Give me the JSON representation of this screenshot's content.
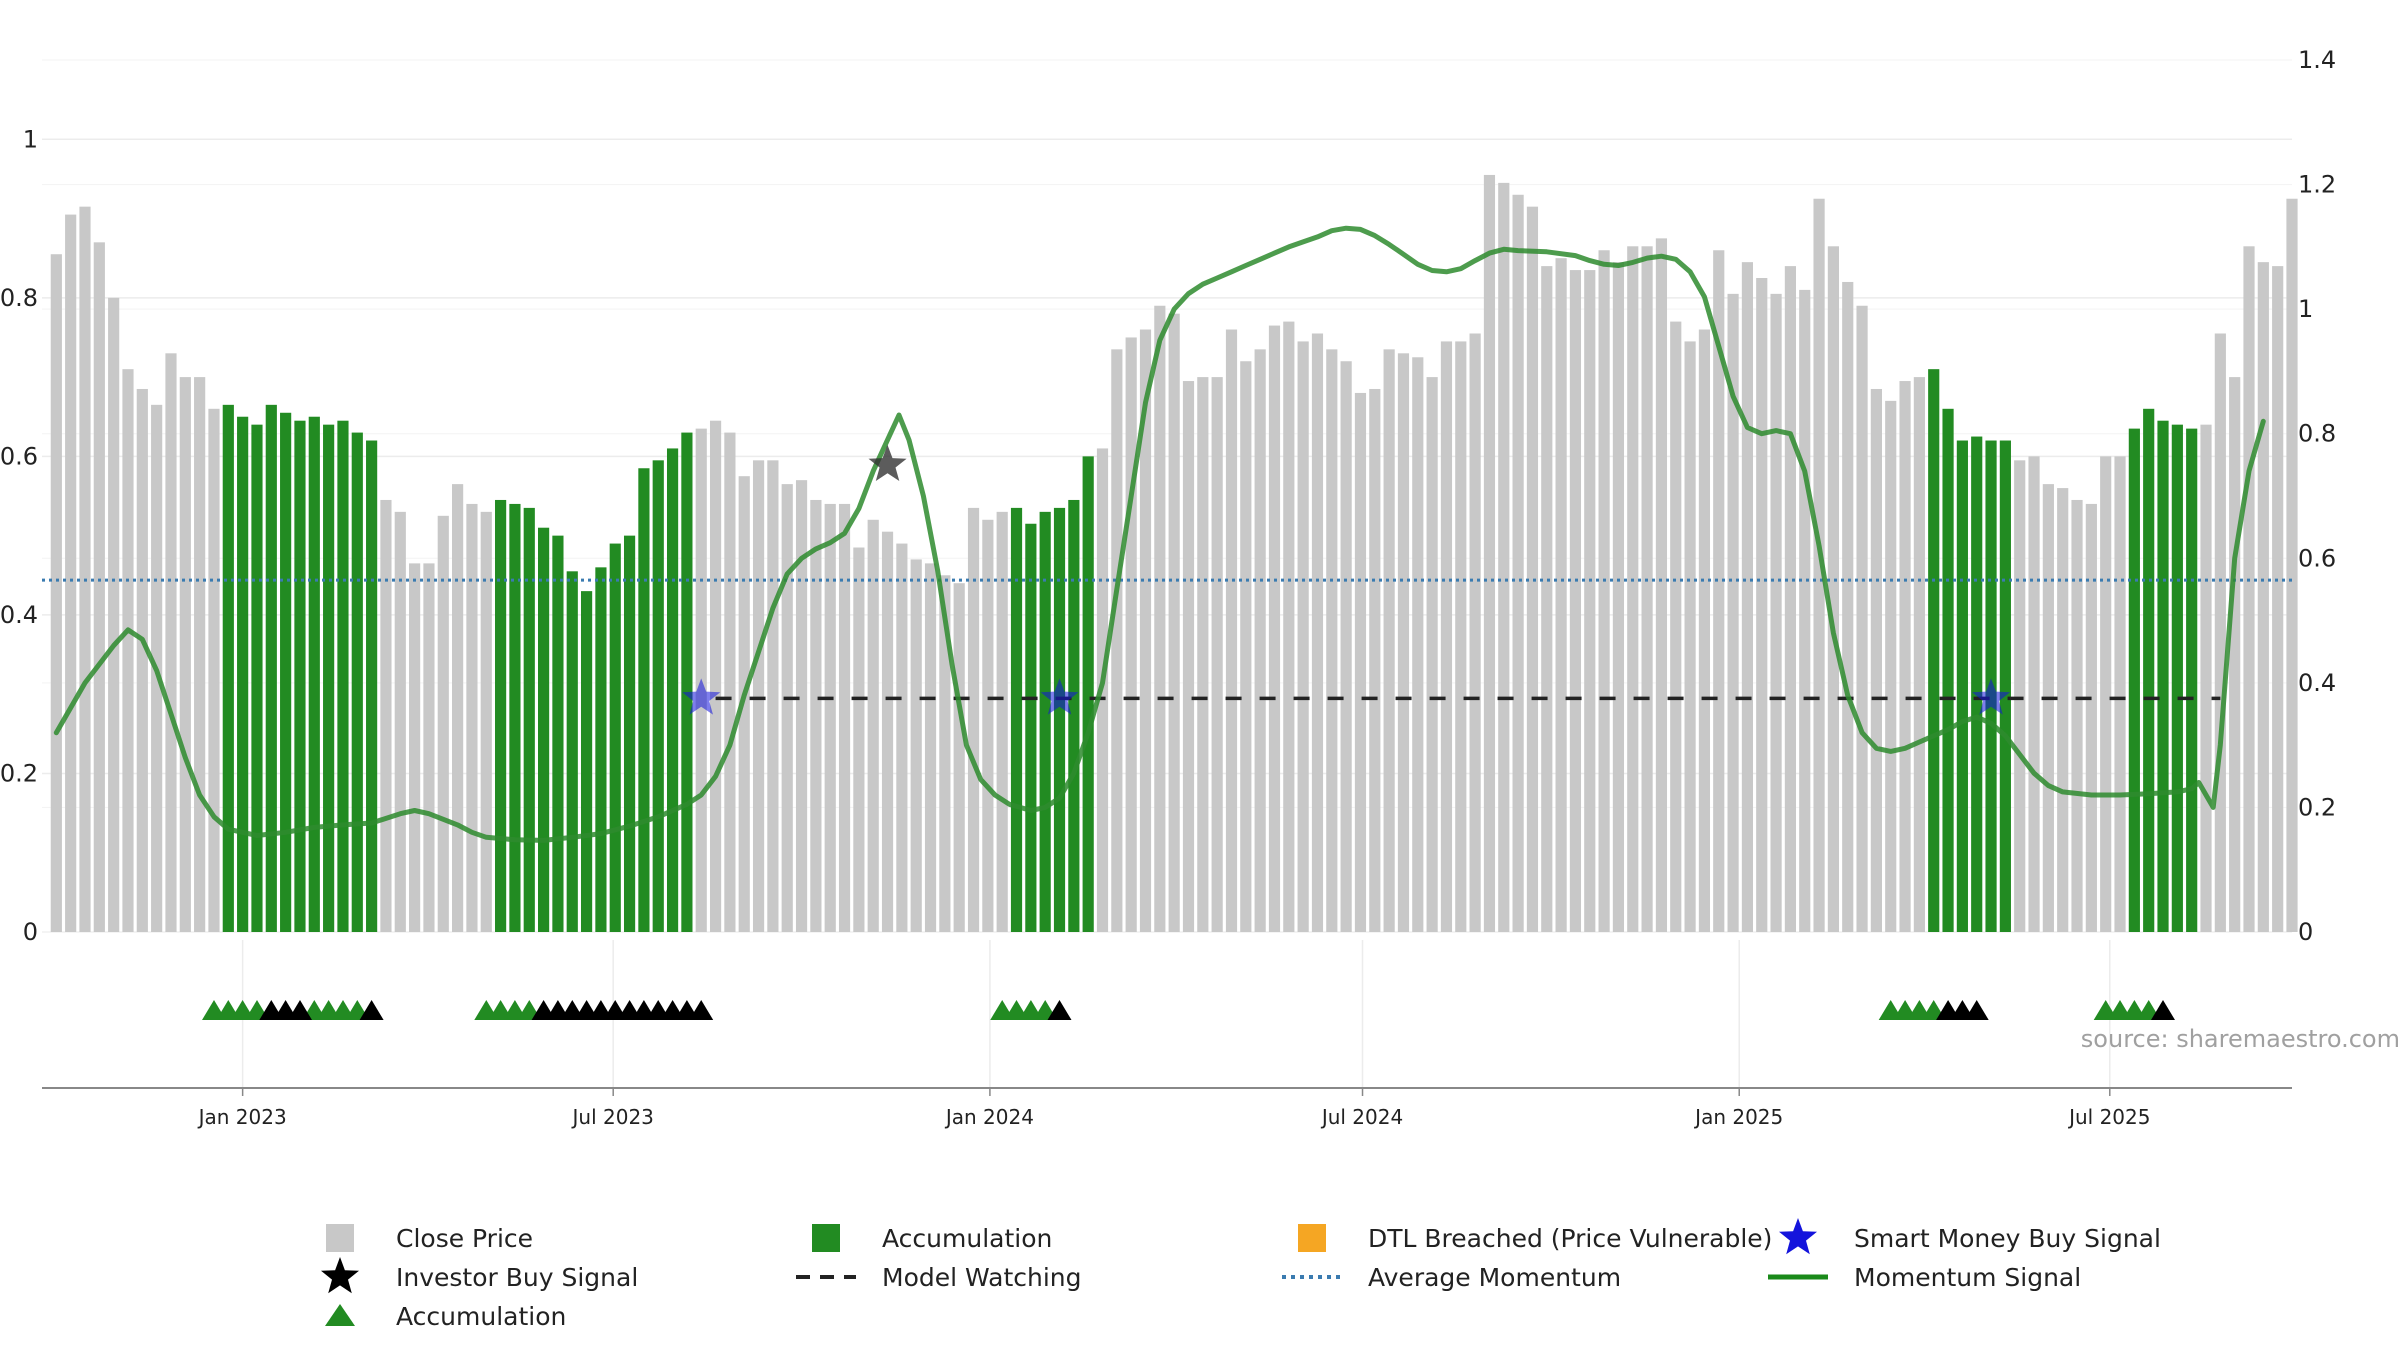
{
  "chart_data": {
    "type": "bar",
    "source_text": "source: sharemaestro.com",
    "x_ticks": [
      "Jan 2023",
      "Jul 2023",
      "Jan 2024",
      "Jul 2024",
      "Jan 2025",
      "Jul 2025"
    ],
    "x_tick_dates": [
      "2023-01-01",
      "2023-07-01",
      "2024-01-01",
      "2024-07-01",
      "2025-01-01",
      "2025-07-01"
    ],
    "x_range": [
      "2022-09-25",
      "2025-09-28"
    ],
    "bar_start_date": "2022-10-02",
    "bar_interval_days": 7,
    "y_left": {
      "range": [
        0,
        1.1
      ],
      "ticks": [
        "0",
        "0.2",
        "0.4",
        "0.6",
        "0.8",
        "1"
      ]
    },
    "y_right": {
      "range": [
        0,
        1.4
      ],
      "ticks": [
        "0",
        "0.2",
        "0.4",
        "0.6",
        "0.8",
        "1",
        "1.2",
        "1.4"
      ]
    },
    "close_price": [
      0.855,
      0.905,
      0.915,
      0.87,
      0.8,
      0.71,
      0.685,
      0.665,
      0.73,
      0.7,
      0.7,
      0.66,
      0.665,
      0.65,
      0.64,
      0.665,
      0.655,
      0.645,
      0.65,
      0.64,
      0.645,
      0.63,
      0.62,
      0.545,
      0.53,
      0.465,
      0.465,
      0.525,
      0.565,
      0.54,
      0.53,
      0.545,
      0.54,
      0.535,
      0.51,
      0.5,
      0.455,
      0.43,
      0.46,
      0.49,
      0.5,
      0.585,
      0.595,
      0.61,
      0.63,
      0.635,
      0.645,
      0.63,
      0.575,
      0.595,
      0.595,
      0.565,
      0.57,
      0.545,
      0.54,
      0.54,
      0.485,
      0.52,
      0.505,
      0.49,
      0.47,
      0.465,
      0.45,
      0.44,
      0.535,
      0.52,
      0.53,
      0.535,
      0.515,
      0.53,
      0.535,
      0.545,
      0.6,
      0.61,
      0.735,
      0.75,
      0.76,
      0.79,
      0.78,
      0.695,
      0.7,
      0.7,
      0.76,
      0.72,
      0.735,
      0.765,
      0.77,
      0.745,
      0.755,
      0.735,
      0.72,
      0.68,
      0.685,
      0.735,
      0.73,
      0.725,
      0.7,
      0.745,
      0.745,
      0.755,
      0.955,
      0.945,
      0.93,
      0.915,
      0.84,
      0.85,
      0.835,
      0.835,
      0.86,
      0.845,
      0.865,
      0.865,
      0.875,
      0.77,
      0.745,
      0.76,
      0.86,
      0.805,
      0.845,
      0.825,
      0.805,
      0.84,
      0.81,
      0.925,
      0.865,
      0.82,
      0.79,
      0.685,
      0.67,
      0.695,
      0.7,
      0.71,
      0.66,
      0.62,
      0.625,
      0.62,
      0.62,
      0.595,
      0.6,
      0.565,
      0.56,
      0.545,
      0.54,
      0.6,
      0.6,
      0.635,
      0.66,
      0.645,
      0.64,
      0.635,
      0.64,
      0.755,
      0.7,
      0.865,
      0.845,
      0.84,
      0.925
    ],
    "accumulation_bars": [
      [
        12,
        22
      ],
      [
        31,
        44
      ],
      [
        67,
        72
      ],
      [
        131,
        136
      ],
      [
        145,
        149
      ]
    ],
    "momentum_signal": [
      [
        0,
        0.32
      ],
      [
        2,
        0.4
      ],
      [
        4,
        0.46
      ],
      [
        5,
        0.485
      ],
      [
        6,
        0.47
      ],
      [
        7,
        0.42
      ],
      [
        8,
        0.35
      ],
      [
        9,
        0.28
      ],
      [
        10,
        0.22
      ],
      [
        11,
        0.185
      ],
      [
        12,
        0.165
      ],
      [
        14,
        0.155
      ],
      [
        16,
        0.16
      ],
      [
        18,
        0.168
      ],
      [
        20,
        0.172
      ],
      [
        22,
        0.175
      ],
      [
        24,
        0.19
      ],
      [
        25,
        0.195
      ],
      [
        26,
        0.19
      ],
      [
        28,
        0.172
      ],
      [
        29,
        0.16
      ],
      [
        30,
        0.152
      ],
      [
        32,
        0.148
      ],
      [
        34,
        0.147
      ],
      [
        36,
        0.152
      ],
      [
        38,
        0.158
      ],
      [
        40,
        0.17
      ],
      [
        42,
        0.185
      ],
      [
        44,
        0.205
      ],
      [
        45,
        0.22
      ],
      [
        46,
        0.25
      ],
      [
        47,
        0.3
      ],
      [
        48,
        0.38
      ],
      [
        49,
        0.45
      ],
      [
        50,
        0.52
      ],
      [
        51,
        0.575
      ],
      [
        52,
        0.6
      ],
      [
        53,
        0.615
      ],
      [
        54,
        0.625
      ],
      [
        55,
        0.64
      ],
      [
        56,
        0.68
      ],
      [
        57,
        0.74
      ],
      [
        58,
        0.79
      ],
      [
        58.8,
        0.83
      ],
      [
        59.5,
        0.79
      ],
      [
        60.5,
        0.7
      ],
      [
        61.5,
        0.58
      ],
      [
        62.5,
        0.43
      ],
      [
        63.5,
        0.3
      ],
      [
        64.5,
        0.245
      ],
      [
        65.5,
        0.22
      ],
      [
        66.5,
        0.205
      ],
      [
        68,
        0.195
      ],
      [
        69,
        0.2
      ],
      [
        70,
        0.215
      ],
      [
        71,
        0.255
      ],
      [
        72,
        0.32
      ],
      [
        73,
        0.4
      ],
      [
        74,
        0.55
      ],
      [
        75,
        0.7
      ],
      [
        76,
        0.85
      ],
      [
        77,
        0.95
      ],
      [
        78,
        1.0
      ],
      [
        79,
        1.025
      ],
      [
        80,
        1.04
      ],
      [
        81,
        1.05
      ],
      [
        82,
        1.06
      ],
      [
        83,
        1.07
      ],
      [
        84,
        1.08
      ],
      [
        85,
        1.09
      ],
      [
        86,
        1.1
      ],
      [
        87,
        1.108
      ],
      [
        88,
        1.116
      ],
      [
        89,
        1.126
      ],
      [
        90,
        1.13
      ],
      [
        91,
        1.128
      ],
      [
        92,
        1.118
      ],
      [
        93,
        1.104
      ],
      [
        94,
        1.088
      ],
      [
        95,
        1.072
      ],
      [
        96,
        1.062
      ],
      [
        97,
        1.06
      ],
      [
        98,
        1.065
      ],
      [
        99,
        1.078
      ],
      [
        100,
        1.09
      ],
      [
        101,
        1.096
      ],
      [
        102,
        1.094
      ],
      [
        104,
        1.092
      ],
      [
        106,
        1.086
      ],
      [
        107,
        1.078
      ],
      [
        108,
        1.072
      ],
      [
        109,
        1.07
      ],
      [
        110,
        1.075
      ],
      [
        111,
        1.082
      ],
      [
        112,
        1.085
      ],
      [
        113,
        1.08
      ],
      [
        114,
        1.06
      ],
      [
        115,
        1.02
      ],
      [
        116,
        0.94
      ],
      [
        117,
        0.86
      ],
      [
        118,
        0.81
      ],
      [
        119,
        0.8
      ],
      [
        120,
        0.805
      ],
      [
        121,
        0.8
      ],
      [
        122,
        0.74
      ],
      [
        123,
        0.62
      ],
      [
        124,
        0.48
      ],
      [
        125,
        0.38
      ],
      [
        126,
        0.32
      ],
      [
        127,
        0.295
      ],
      [
        128,
        0.29
      ],
      [
        129,
        0.295
      ],
      [
        130,
        0.305
      ],
      [
        131,
        0.315
      ],
      [
        132,
        0.325
      ],
      [
        133,
        0.338
      ],
      [
        134,
        0.345
      ],
      [
        135,
        0.335
      ],
      [
        136,
        0.315
      ],
      [
        137,
        0.285
      ],
      [
        138,
        0.255
      ],
      [
        139,
        0.235
      ],
      [
        140,
        0.225
      ],
      [
        142,
        0.22
      ],
      [
        144,
        0.22
      ],
      [
        146,
        0.222
      ],
      [
        148,
        0.225
      ],
      [
        149,
        0.23
      ],
      [
        149.5,
        0.24
      ],
      [
        150.5,
        0.2
      ],
      [
        151,
        0.3
      ],
      [
        152,
        0.6
      ],
      [
        153,
        0.74
      ],
      [
        154,
        0.82
      ]
    ],
    "average_momentum": 0.565,
    "model_watching": {
      "value": 0.375,
      "segments": [
        [
          46,
          151
        ]
      ]
    },
    "investor_buy_signal": [
      {
        "i": 58,
        "value": 0.75
      }
    ],
    "smart_money_buy_signal": [
      {
        "i": 45,
        "value": 0.375
      },
      {
        "i": 70,
        "value": 0.375
      },
      {
        "i": 135,
        "value": 0.375
      }
    ],
    "strip_accumulation": [
      11,
      12,
      13,
      14,
      18,
      19,
      20,
      21,
      30,
      31,
      32,
      33,
      66,
      67,
      68,
      69,
      128,
      129,
      130,
      131,
      143,
      144,
      145,
      146
    ],
    "strip_black": [
      15,
      16,
      17,
      22,
      34,
      35,
      36,
      37,
      38,
      39,
      40,
      41,
      42,
      43,
      44,
      45,
      70,
      132,
      133,
      134,
      147
    ],
    "colors": {
      "close_price": "#c8c8c8",
      "accumulation": "#228b22",
      "momentum": "#2e8b2e",
      "average_momentum": "#3a7bb0",
      "model_watching": "#222222",
      "smart_money": "#1414dc",
      "investor": "#000000",
      "dtl": "#f5a623",
      "strip_black": "#000000"
    },
    "legend": [
      {
        "label": "Close Price",
        "marker": "square-gray"
      },
      {
        "label": "Accumulation",
        "marker": "square-green"
      },
      {
        "label": "DTL Breached (Price Vulnerable)",
        "marker": "square-orange"
      },
      {
        "label": "Smart Money Buy Signal",
        "marker": "star-blue"
      },
      {
        "label": "Investor Buy Signal",
        "marker": "star-black"
      },
      {
        "label": "Model Watching",
        "marker": "dash-black"
      },
      {
        "label": "Average Momentum",
        "marker": "dot-blue"
      },
      {
        "label": "Momentum Signal",
        "marker": "line-green"
      },
      {
        "label": "Accumulation",
        "marker": "triangle-green"
      }
    ]
  }
}
